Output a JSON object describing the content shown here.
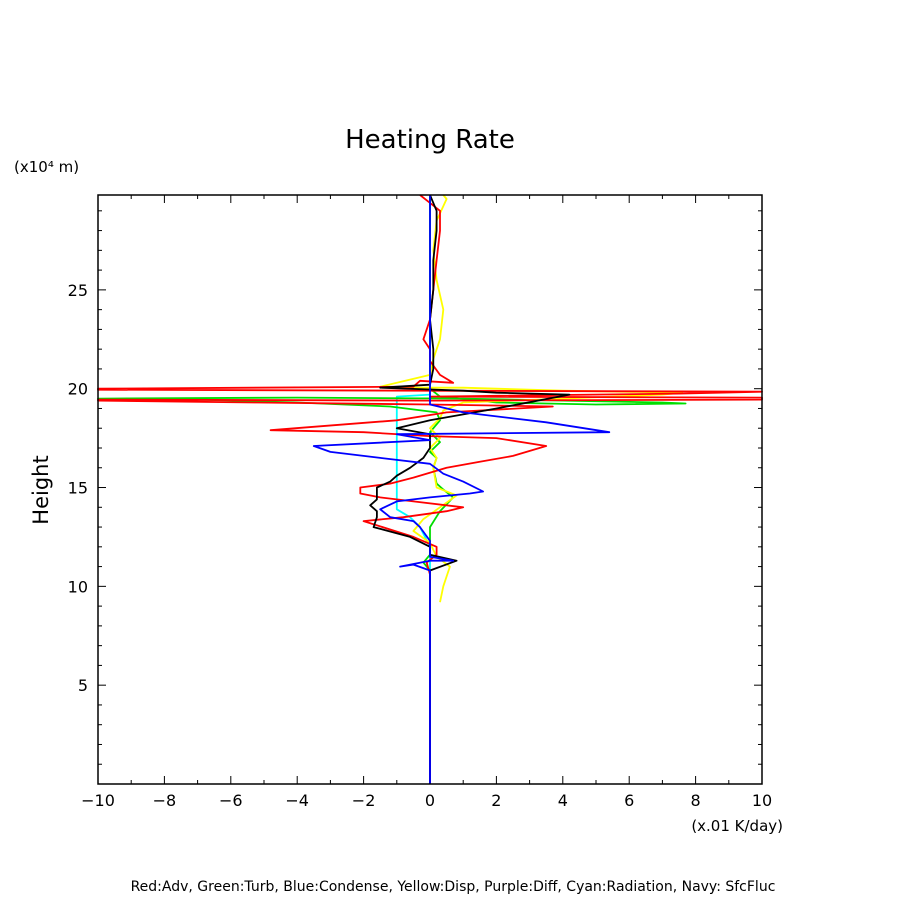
{
  "chart_data": {
    "type": "line",
    "title": "Heating Rate",
    "ylabel": "Height",
    "yunit": "(x10⁴ m)",
    "xunit": "(x.01 K/day)",
    "xlim": [
      -10,
      10
    ],
    "ylim": [
      0,
      29.8
    ],
    "xticks": [
      -10,
      -8,
      -6,
      -4,
      -2,
      0,
      2,
      4,
      6,
      8,
      10
    ],
    "yticks": [
      5,
      10,
      15,
      20,
      25
    ],
    "grid": false,
    "legend_text": "Red:Adv, Green:Turb, Blue:Condense, Yellow:Disp, Purple:Diff, Cyan:Radiation, Navy: SfcFluc",
    "series": [
      {
        "key": "radiation",
        "color": "#00ffff",
        "points": [
          [
            0,
            0
          ],
          [
            0,
            10
          ],
          [
            0,
            12
          ],
          [
            -0.3,
            13
          ],
          [
            -0.6,
            13.5
          ],
          [
            -1.0,
            13.9
          ],
          [
            -1.0,
            15
          ],
          [
            -1.0,
            17
          ],
          [
            -1.0,
            18.5
          ],
          [
            -1.0,
            19.6
          ],
          [
            0,
            19.7
          ],
          [
            0,
            29.5
          ]
        ]
      },
      {
        "key": "turb",
        "color": "#00dd00",
        "points": [
          [
            0,
            0
          ],
          [
            0,
            10.8
          ],
          [
            -0.2,
            11.2
          ],
          [
            0,
            11.6
          ],
          [
            0,
            13
          ],
          [
            0.3,
            13.8
          ],
          [
            0.7,
            14.5
          ],
          [
            0.4,
            14.9
          ],
          [
            0.2,
            15.2
          ],
          [
            0.1,
            16
          ],
          [
            0.2,
            16.5
          ],
          [
            0,
            16.8
          ],
          [
            0.3,
            17.3
          ],
          [
            0,
            17.8
          ],
          [
            0.3,
            18.4
          ],
          [
            0.2,
            18.8
          ],
          [
            -1.2,
            19.1
          ],
          [
            -4,
            19.3
          ],
          [
            -7,
            19.45
          ],
          [
            -10,
            19.5
          ],
          [
            -4,
            19.55
          ],
          [
            1,
            19.5
          ],
          [
            4,
            19.4
          ],
          [
            7,
            19.3
          ],
          [
            7.7,
            19.25
          ],
          [
            5,
            19.2
          ],
          [
            2,
            19.3
          ],
          [
            0.3,
            19.6
          ],
          [
            0,
            20
          ],
          [
            0,
            29.8
          ]
        ]
      },
      {
        "key": "disp",
        "color": "#ffff00",
        "points": [
          [
            0.3,
            9.2
          ],
          [
            0.4,
            10
          ],
          [
            0.6,
            11
          ],
          [
            0.2,
            11.5
          ],
          [
            0,
            12.2
          ],
          [
            -0.5,
            12.8
          ],
          [
            -0.2,
            13.4
          ],
          [
            0.3,
            14
          ],
          [
            0.8,
            14.6
          ],
          [
            0.2,
            15
          ],
          [
            0.1,
            16
          ],
          [
            0.2,
            16.5
          ],
          [
            0,
            17
          ],
          [
            0.3,
            17.5
          ],
          [
            0,
            18
          ],
          [
            0.3,
            18.5
          ],
          [
            0.4,
            18.9
          ],
          [
            1,
            19.3
          ],
          [
            4,
            19.5
          ],
          [
            7,
            19.7
          ],
          [
            7.6,
            19.8
          ],
          [
            4,
            19.9
          ],
          [
            1,
            20.05
          ],
          [
            -1.2,
            20.05
          ],
          [
            -1.5,
            20.1
          ],
          [
            0,
            20.7
          ],
          [
            0.1,
            21.5
          ],
          [
            0.3,
            22.5
          ],
          [
            0.4,
            24
          ],
          [
            0.2,
            25.5
          ],
          [
            0.1,
            27
          ],
          [
            0.2,
            28.5
          ],
          [
            0.5,
            29.6
          ],
          [
            0.4,
            29.8
          ]
        ]
      },
      {
        "key": "adv",
        "color": "#ff0000",
        "points": [
          [
            0,
            0
          ],
          [
            0,
            10.6
          ],
          [
            -0.1,
            11.2
          ],
          [
            0.2,
            11.6
          ],
          [
            0.2,
            12
          ],
          [
            -0.5,
            12.5
          ],
          [
            -2.0,
            13.3
          ],
          [
            -0.8,
            13.5
          ],
          [
            0.5,
            13.8
          ],
          [
            1.0,
            14
          ],
          [
            -0.5,
            14.3
          ],
          [
            -1.5,
            14.5
          ],
          [
            -2.1,
            14.7
          ],
          [
            -2.1,
            15.0
          ],
          [
            -1.2,
            15.2
          ],
          [
            -0.5,
            15.5
          ],
          [
            0.5,
            16
          ],
          [
            1.5,
            16.3
          ],
          [
            2.5,
            16.6
          ],
          [
            3.5,
            17.1
          ],
          [
            2.0,
            17.5
          ],
          [
            0,
            17.6
          ],
          [
            -2,
            17.8
          ],
          [
            -4.8,
            17.9
          ],
          [
            -1,
            18.4
          ],
          [
            0.5,
            18.8
          ],
          [
            3.7,
            19.1
          ],
          [
            0,
            19.2
          ],
          [
            -5.2,
            19.3
          ],
          [
            -10,
            19.4
          ],
          [
            -10,
            19.45
          ],
          [
            0,
            19.4
          ],
          [
            10,
            19.45
          ],
          [
            10,
            19.55
          ],
          [
            0,
            19.6
          ],
          [
            7.5,
            19.75
          ],
          [
            10,
            19.85
          ],
          [
            0,
            19.9
          ],
          [
            -10,
            19.95
          ],
          [
            -10,
            20.0
          ],
          [
            -0.5,
            20.1
          ],
          [
            -0.3,
            20.4
          ],
          [
            0.7,
            20.3
          ],
          [
            0.3,
            20.7
          ],
          [
            0,
            21.4
          ],
          [
            0,
            22
          ],
          [
            -0.2,
            22.5
          ],
          [
            0,
            23.5
          ],
          [
            0.1,
            25
          ],
          [
            0.2,
            26.5
          ],
          [
            0.3,
            28
          ],
          [
            0.3,
            29
          ],
          [
            0,
            29.4
          ],
          [
            -0.3,
            29.8
          ]
        ]
      },
      {
        "key": "total",
        "color": "#000000",
        "points": [
          [
            0,
            0
          ],
          [
            0,
            10.8
          ],
          [
            0.8,
            11.3
          ],
          [
            0,
            11.6
          ],
          [
            0,
            12
          ],
          [
            -0.6,
            12.5
          ],
          [
            -1.7,
            13
          ],
          [
            -1.6,
            13.5
          ],
          [
            -1.6,
            13.8
          ],
          [
            -1.8,
            14.1
          ],
          [
            -1.6,
            14.4
          ],
          [
            -1.6,
            15
          ],
          [
            -1.2,
            15.3
          ],
          [
            -1.0,
            15.6
          ],
          [
            -0.6,
            16
          ],
          [
            -0.2,
            16.5
          ],
          [
            0,
            17
          ],
          [
            0,
            17.7
          ],
          [
            -1,
            18
          ],
          [
            0,
            18.4
          ],
          [
            2,
            19
          ],
          [
            4.2,
            19.7
          ],
          [
            2,
            19.8
          ],
          [
            1,
            19.9
          ],
          [
            -1.5,
            20.05
          ],
          [
            0,
            20.2
          ],
          [
            0.1,
            21
          ],
          [
            0.1,
            22
          ],
          [
            0,
            23.5
          ],
          [
            0.1,
            25
          ],
          [
            0.1,
            26.5
          ],
          [
            0.2,
            28
          ],
          [
            0.2,
            29
          ],
          [
            0,
            29.8
          ]
        ]
      },
      {
        "key": "condense",
        "color": "#0000ff",
        "points": [
          [
            0,
            0
          ],
          [
            0,
            10.8
          ],
          [
            -0.5,
            11.1
          ],
          [
            -0.9,
            11
          ],
          [
            0,
            11.3
          ],
          [
            0.7,
            11.3
          ],
          [
            0,
            11.5
          ],
          [
            0,
            12.3
          ],
          [
            -0.3,
            13
          ],
          [
            -0.5,
            13.3
          ],
          [
            -1.2,
            13.5
          ],
          [
            -1.5,
            13.9
          ],
          [
            -1.0,
            14.3
          ],
          [
            0,
            14.5
          ],
          [
            1.2,
            14.7
          ],
          [
            1.6,
            14.8
          ],
          [
            1.0,
            15.3
          ],
          [
            0.4,
            15.7
          ],
          [
            0,
            16.2
          ],
          [
            -1.5,
            16.5
          ],
          [
            -3,
            16.8
          ],
          [
            -3.5,
            17.1
          ],
          [
            0,
            17.4
          ],
          [
            -1,
            17.7
          ],
          [
            5.4,
            17.8
          ],
          [
            3.5,
            18.3
          ],
          [
            1,
            18.8
          ],
          [
            0,
            19.2
          ],
          [
            0,
            19.6
          ],
          [
            0,
            29.8
          ]
        ]
      }
    ]
  }
}
